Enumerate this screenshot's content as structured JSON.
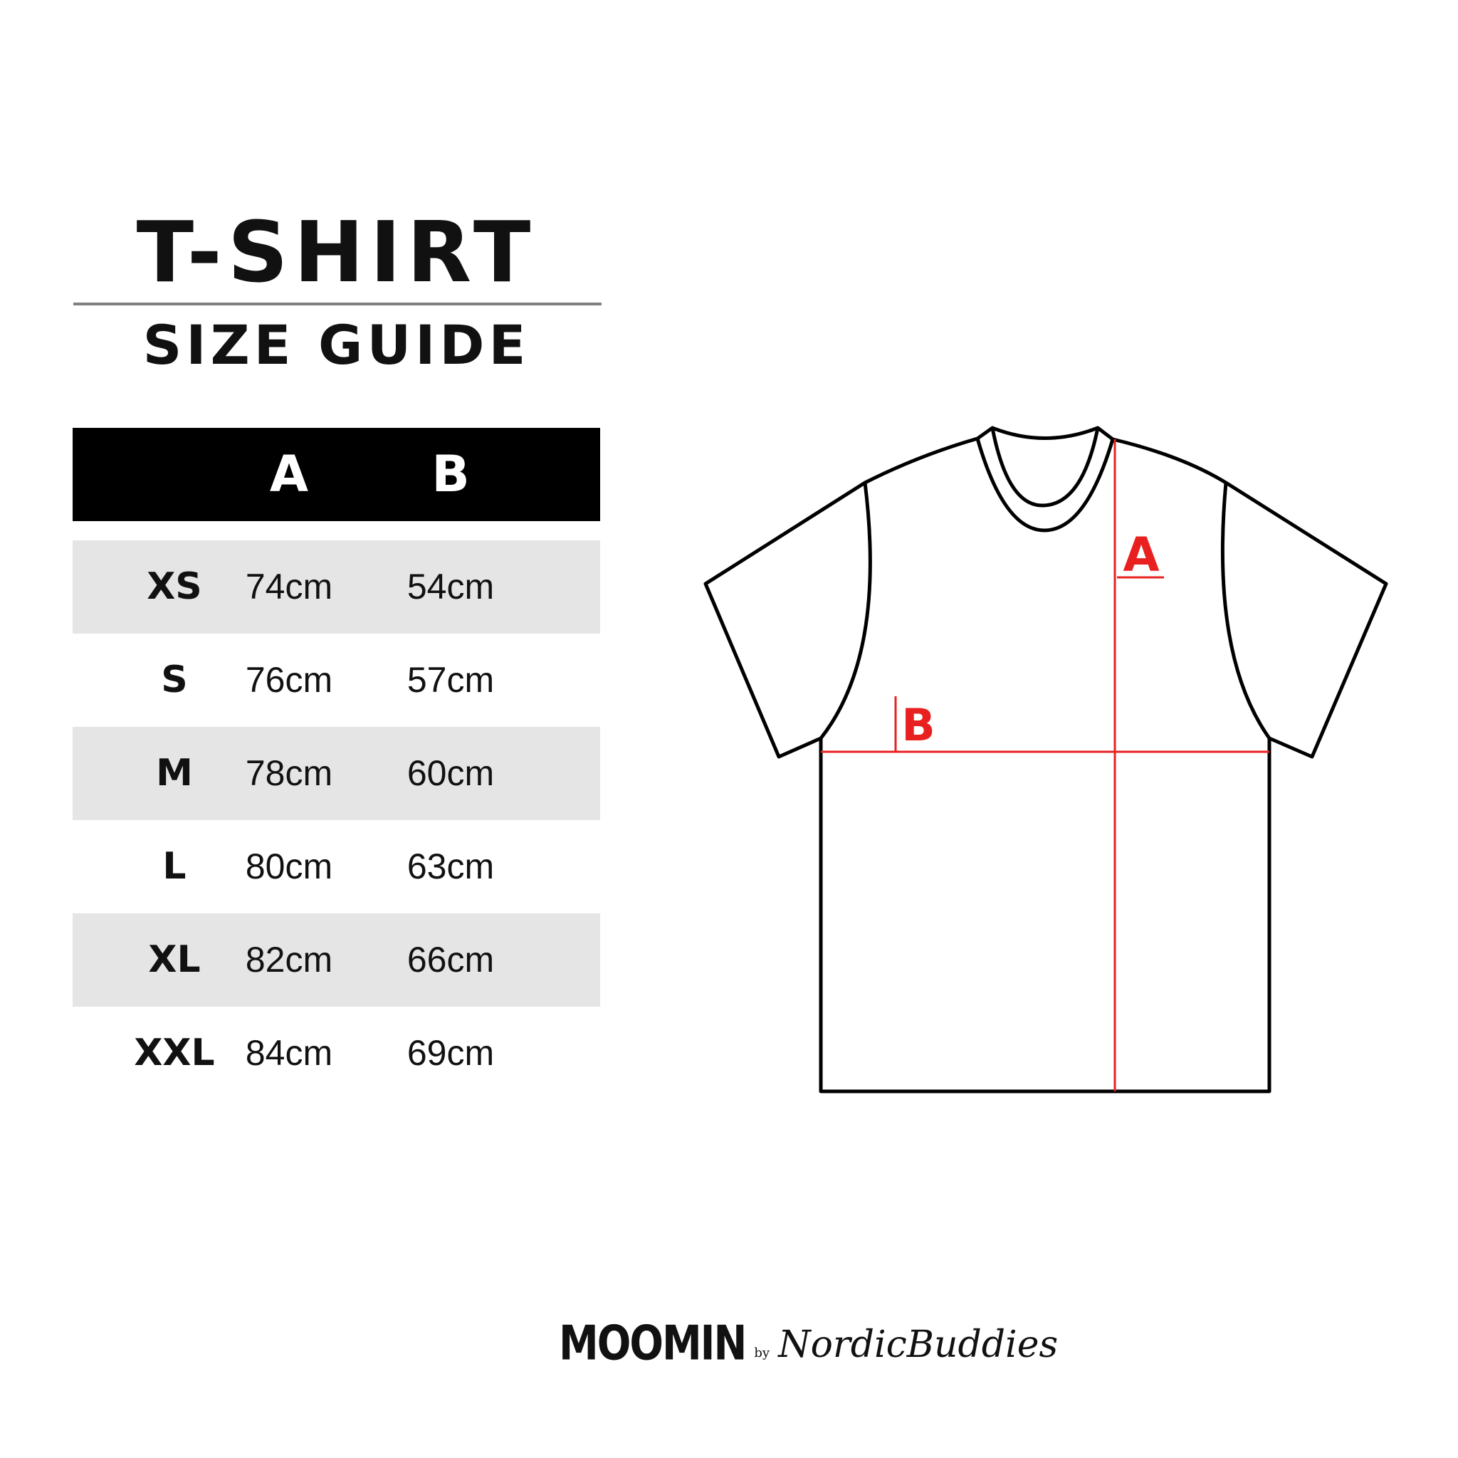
{
  "header": {
    "title": "T-SHIRT",
    "subtitle": "SIZE GUIDE"
  },
  "table": {
    "columns": [
      "A",
      "B"
    ],
    "rows": [
      {
        "size": "XS",
        "a": "74cm",
        "b": "54cm"
      },
      {
        "size": "S",
        "a": "76cm",
        "b": "57cm"
      },
      {
        "size": "M",
        "a": "78cm",
        "b": "60cm"
      },
      {
        "size": "L",
        "a": "80cm",
        "b": "63cm"
      },
      {
        "size": "XL",
        "a": "82cm",
        "b": "66cm"
      },
      {
        "size": "XXL",
        "a": "84cm",
        "b": "69cm"
      }
    ]
  },
  "diagram": {
    "label_a": "A",
    "label_b": "B",
    "measure_color": "#e82020",
    "outline_color": "#000000"
  },
  "footer": {
    "brand": "MOOMIN",
    "by": "by",
    "partner": "NordicBuddies"
  },
  "colors": {
    "header_bg": "#000000",
    "row_shade": "#e5e5e5"
  }
}
